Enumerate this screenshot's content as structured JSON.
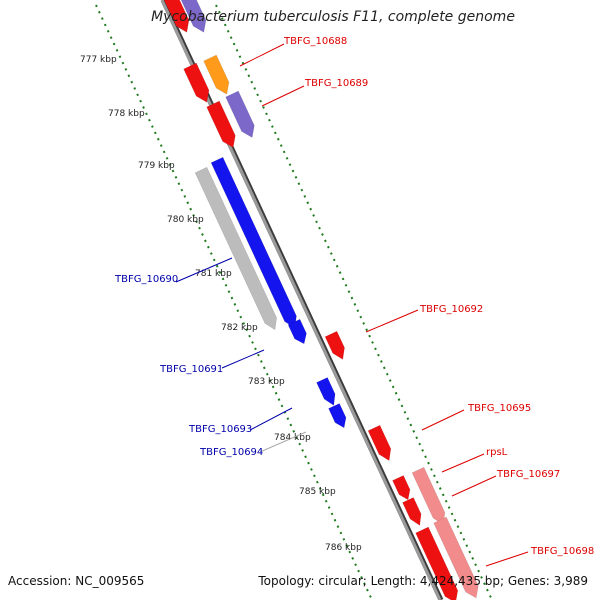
{
  "title": "Mycobacterium tuberculosis F11, complete genome",
  "footer": {
    "accession": "Accession: NC_009565",
    "summary": "Topology: circular; Length: 4,424,435 bp; Genes: 3,989"
  },
  "colors": {
    "backbone": "#8a8a8a",
    "backbone_shadow": "#3c3c3c",
    "ruler": "#1e7a1e",
    "red_gene": "#ee1111",
    "blue_gene": "#1414ee",
    "purple_gene": "#7b68c9",
    "orange_gene": "#ff9a1a",
    "gray_gene": "#bcbcbc",
    "pink_gene": "#f28c8c",
    "red_label": "#dd0000",
    "blue_label": "#0000aa"
  },
  "ruler_ticks": [
    "777 kbp",
    "778 kbp",
    "779 kbp",
    "780 kbp",
    "781 kbp",
    "782 kbp",
    "783 kbp",
    "784 kbp",
    "785 kbp",
    "786 kbp"
  ],
  "gene_labels": [
    {
      "text": "TBFG_10688",
      "color": "red"
    },
    {
      "text": "TBFG_10689",
      "color": "red"
    },
    {
      "text": "TBFG_10690",
      "color": "blue"
    },
    {
      "text": "TBFG_10691",
      "color": "blue"
    },
    {
      "text": "TBFG_10692",
      "color": "red"
    },
    {
      "text": "TBFG_10693",
      "color": "blue"
    },
    {
      "text": "TBFG_10694",
      "color": "blue"
    },
    {
      "text": "TBFG_10695",
      "color": "red"
    },
    {
      "text": "rpsL",
      "color": "red"
    },
    {
      "text": "TBFG_10697",
      "color": "red"
    },
    {
      "text": "TBFG_10698",
      "color": "red"
    }
  ]
}
